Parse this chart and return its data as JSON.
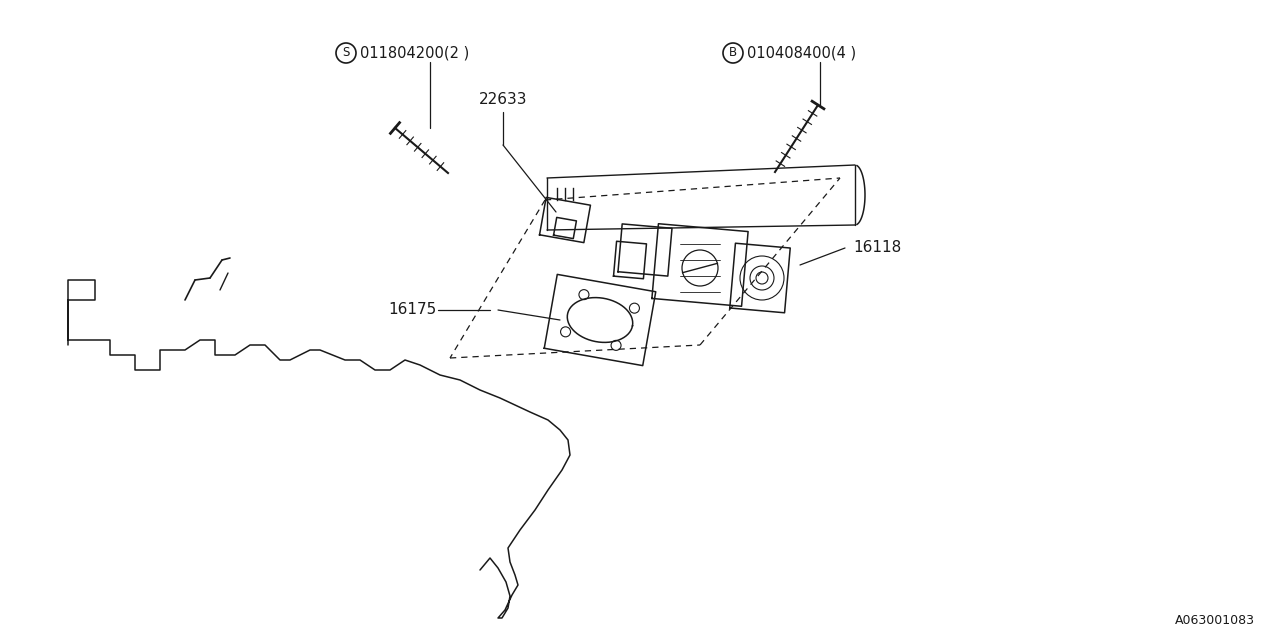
{
  "bg_color": "#ffffff",
  "line_color": "#1a1a1a",
  "fig_width": 12.8,
  "fig_height": 6.4,
  "title_code": "A063001083",
  "label_22633": "22633",
  "label_16118": "16118",
  "label_16175": "16175",
  "s_label": "011804200(2 )",
  "b_label": "010408400(4 )"
}
